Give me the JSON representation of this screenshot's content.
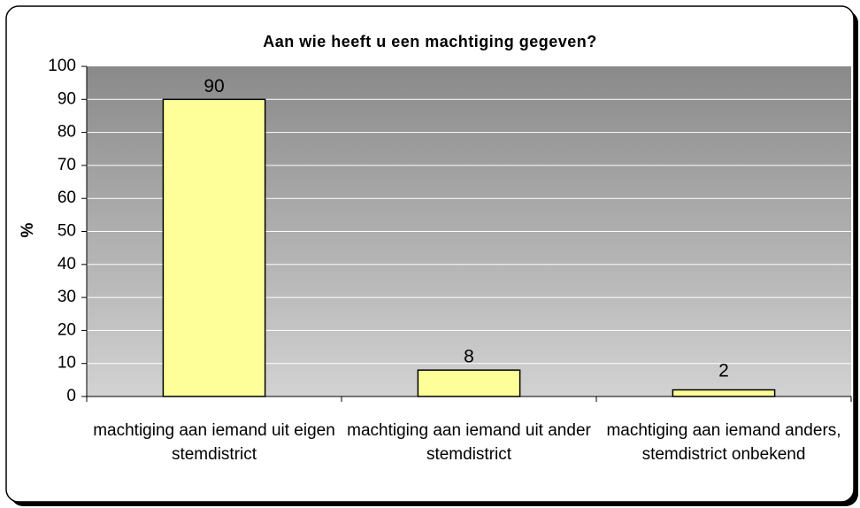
{
  "chart_data": {
    "type": "bar",
    "title": "Aan wie heeft u een machtiging gegeven?",
    "y_label": "%",
    "categories": [
      "machtiging aan iemand uit eigen stemdistrict",
      "machtiging aan iemand uit ander stemdistrict",
      "machtiging aan iemand anders, stemdistrict onbekend"
    ],
    "values": [
      90,
      8,
      2
    ],
    "color": "#ffff99",
    "ylim": [
      0,
      100
    ],
    "yticks": [
      0,
      10,
      20,
      30,
      40,
      50,
      60,
      70,
      80,
      90,
      100
    ],
    "grid": true
  }
}
